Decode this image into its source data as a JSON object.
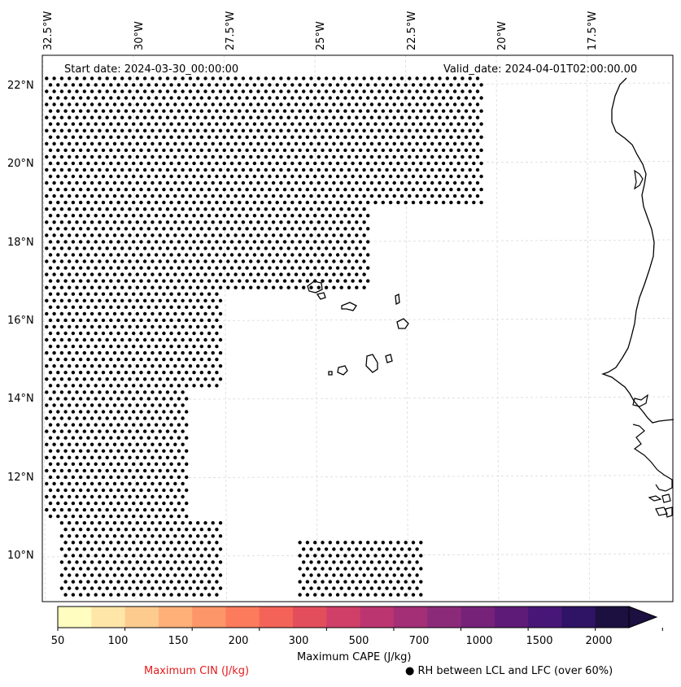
{
  "map": {
    "start_date": "Start date: 2024-03-30_00:00:00",
    "valid_date": "Valid_date: 2024-04-01T02:00:00.00",
    "lon_labels": [
      "32.5°W",
      "30°W",
      "27.5°W",
      "25°W",
      "22.5°W",
      "20°W",
      "17.5°W"
    ],
    "lat_labels": [
      "22°N",
      "20°N",
      "18°N",
      "16°N",
      "14°N",
      "12°N",
      "10°N"
    ],
    "gridlines": true,
    "coastline_color": "#000000",
    "dot_color": "#000000",
    "dot_regions": [
      {
        "lat": [
          19.0,
          22.2
        ],
        "lon": [
          -32.5,
          -20.4
        ]
      },
      {
        "lat": [
          16.8,
          19.0
        ],
        "lon": [
          -32.5,
          -23.5
        ]
      },
      {
        "lat": [
          14.2,
          16.8
        ],
        "lon": [
          -32.5,
          -27.5
        ]
      },
      {
        "lat": [
          11.0,
          14.2
        ],
        "lon": [
          -32.5,
          -28.5
        ]
      },
      {
        "lat": [
          9.0,
          11.0
        ],
        "lon": [
          -32.0,
          -27.5
        ]
      },
      {
        "lat": [
          9.0,
          10.5
        ],
        "lon": [
          -25.5,
          -22.0
        ]
      }
    ]
  },
  "colorbar": {
    "label": "Maximum CAPE (J/kg)",
    "ticks": [
      "50",
      "100",
      "150",
      "200",
      "300",
      "500",
      "700",
      "1000",
      "1500",
      "2000"
    ],
    "colors": [
      "#fffdbf",
      "#fee6a8",
      "#fecb8f",
      "#feb078",
      "#fd9668",
      "#fb7b5c",
      "#f36358",
      "#e34e5d",
      "#d03f68",
      "#bb3571",
      "#a32f76",
      "#8c2a7a",
      "#762279",
      "#5f1b78",
      "#471777",
      "#2f1465",
      "#1b1040"
    ]
  },
  "legend": {
    "cin": "Maximum CIN (J/kg)",
    "rh": "● RH between LCL and LFC (over 60%)"
  }
}
